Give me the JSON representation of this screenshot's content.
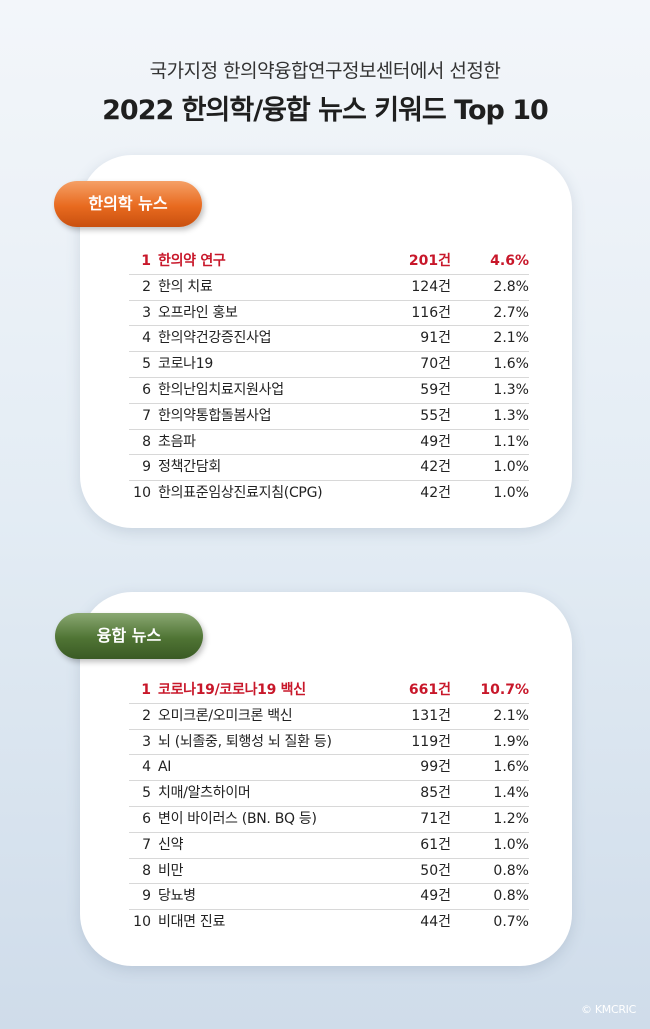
{
  "header": {
    "subtitle": "국가지정 한의약융합연구정보센터에서 선정한",
    "title": "2022 한의학/융합 뉴스 키워드 Top 10"
  },
  "sections": [
    {
      "label": "한의학 뉴스",
      "accent": "#e86a1f",
      "rows": [
        {
          "rank": "1",
          "keyword": "한의약 연구",
          "count": "201건",
          "percent": "4.6%"
        },
        {
          "rank": "2",
          "keyword": "한의 치료",
          "count": "124건",
          "percent": "2.8%"
        },
        {
          "rank": "3",
          "keyword": "오프라인 홍보",
          "count": "116건",
          "percent": "2.7%"
        },
        {
          "rank": "4",
          "keyword": "한의약건강증진사업",
          "count": "91건",
          "percent": "2.1%"
        },
        {
          "rank": "5",
          "keyword": "코로나19",
          "count": "70건",
          "percent": "1.6%"
        },
        {
          "rank": "6",
          "keyword": "한의난임치료지원사업",
          "count": "59건",
          "percent": "1.3%"
        },
        {
          "rank": "7",
          "keyword": "한의약통합돌봄사업",
          "count": "55건",
          "percent": "1.3%"
        },
        {
          "rank": "8",
          "keyword": "초음파",
          "count": "49건",
          "percent": "1.1%"
        },
        {
          "rank": "9",
          "keyword": "정책간담회",
          "count": "42건",
          "percent": "1.0%"
        },
        {
          "rank": "10",
          "keyword": "한의표준임상진료지침(CPG)",
          "count": "42건",
          "percent": "1.0%"
        }
      ]
    },
    {
      "label": "융합 뉴스",
      "accent": "#4f7434",
      "rows": [
        {
          "rank": "1",
          "keyword": "코로나19/코로나19 백신",
          "count": "661건",
          "percent": "10.7%"
        },
        {
          "rank": "2",
          "keyword": "오미크론/오미크론 백신",
          "count": "131건",
          "percent": "2.1%"
        },
        {
          "rank": "3",
          "keyword": "뇌 (뇌졸중, 퇴행성 뇌 질환 등)",
          "count": "119건",
          "percent": "1.9%"
        },
        {
          "rank": "4",
          "keyword": "AI",
          "count": "99건",
          "percent": "1.6%"
        },
        {
          "rank": "5",
          "keyword": "치매/알츠하이머",
          "count": "85건",
          "percent": "1.4%"
        },
        {
          "rank": "6",
          "keyword": "변이 바이러스 (BN. BQ 등)",
          "count": "71건",
          "percent": "1.2%"
        },
        {
          "rank": "7",
          "keyword": "신약",
          "count": "61건",
          "percent": "1.0%"
        },
        {
          "rank": "8",
          "keyword": "비만",
          "count": "50건",
          "percent": "0.8%"
        },
        {
          "rank": "9",
          "keyword": "당뇨병",
          "count": "49건",
          "percent": "0.8%"
        },
        {
          "rank": "10",
          "keyword": "비대면 진료",
          "count": "44건",
          "percent": "0.7%"
        }
      ]
    }
  ],
  "highlight_color": "#c8172a",
  "credit": "© KMCRIC"
}
